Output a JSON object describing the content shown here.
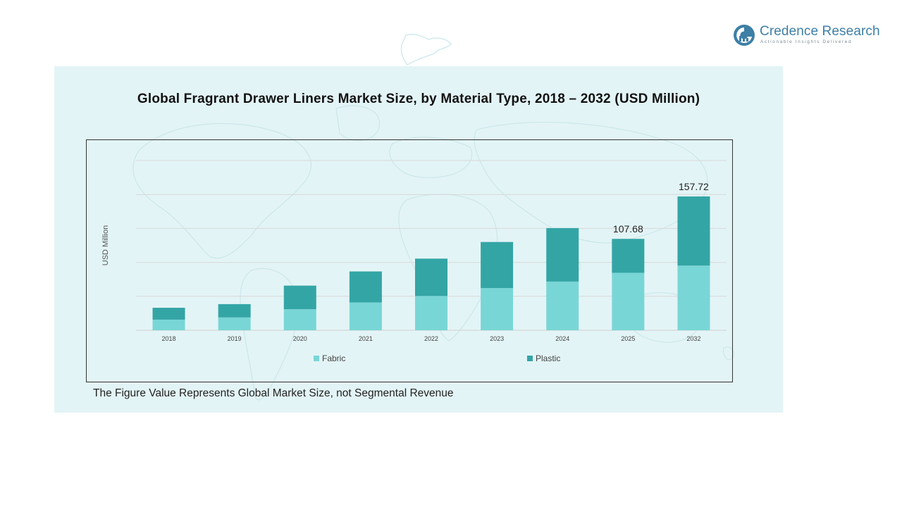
{
  "brand": {
    "name": "Credence Research",
    "tagline": "Actionable Insights Delivered",
    "color": "#3d7fa6"
  },
  "footnote": "The Figure Value Represents Global Market Size, not Segmental Revenue",
  "colors": {
    "panel_bg": "#e3f4f6",
    "fabric": "#79d6d6",
    "plastic": "#34a5a5"
  },
  "chart_data": {
    "type": "bar",
    "stacked": true,
    "title": "Global Fragrant Drawer Liners Market Size, by Material Type, 2018 – 2032 (USD Million)",
    "ylabel": "USD Million",
    "xlabel": "",
    "categories": [
      "2018",
      "2019",
      "2020",
      "2021",
      "2022",
      "2023",
      "2024",
      "2025",
      "2032"
    ],
    "series": [
      {
        "name": "Fabric",
        "color": "#79d6d6",
        "values": [
          12.5,
          15.1,
          24.8,
          32.8,
          40.4,
          49.7,
          57.4,
          67.7,
          76.2
        ]
      },
      {
        "name": "Plastic",
        "color": "#34a5a5",
        "values": [
          14.0,
          15.7,
          27.8,
          36.5,
          44.0,
          54.3,
          63.0,
          40.0,
          81.5
        ]
      }
    ],
    "data_labels": [
      {
        "category": "2025",
        "text": "107.68"
      },
      {
        "category": "2032",
        "text": "157.72"
      }
    ],
    "ylim": [
      0,
      200
    ],
    "grid": true,
    "legend": "bottom"
  }
}
